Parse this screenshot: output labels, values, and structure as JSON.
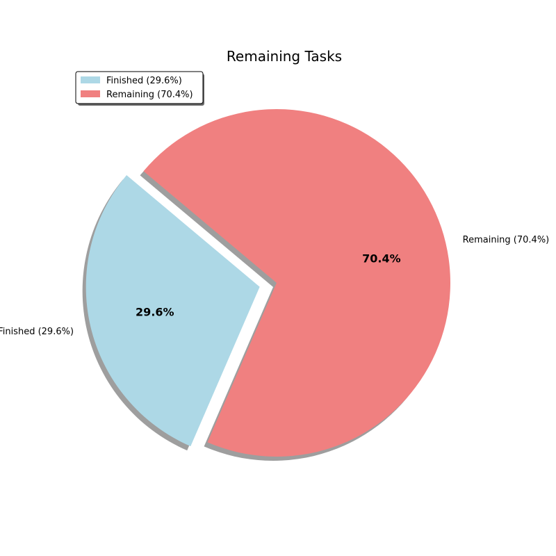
{
  "chart_data": {
    "type": "pie",
    "title": "Remaining Tasks",
    "slices": [
      {
        "category": "Finished",
        "value": 29.6,
        "label": "Finished (29.6%)",
        "pct_label": "29.6%",
        "color": "#add8e6",
        "exploded": true
      },
      {
        "category": "Remaining",
        "value": 70.4,
        "label": "Remaining (70.4%)",
        "pct_label": "70.4%",
        "color": "#f08080",
        "exploded": false
      }
    ],
    "start_angle_deg": 140,
    "direction": "counterclockwise",
    "shadow": true,
    "legend": {
      "placement": "top-left",
      "entries": [
        "Finished (29.6%)",
        "Remaining (70.4%)"
      ]
    }
  }
}
